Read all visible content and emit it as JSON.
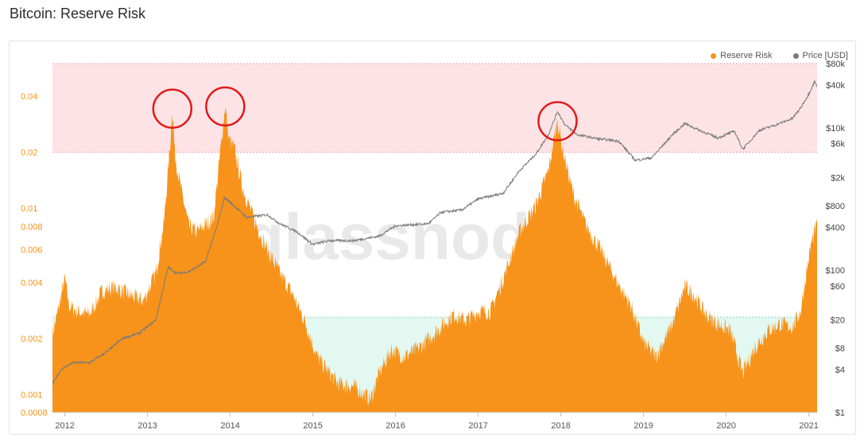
{
  "title": "Bitcoin: Reserve Risk",
  "watermark": "glassnode",
  "colors": {
    "reserve": "#f7931a",
    "price": "#7a7a7a",
    "redZone": "#fde3e5",
    "greenZone": "#e3f8f1",
    "leftAxis": "#f7931a"
  },
  "legend": {
    "reserve": "Reserve Risk",
    "price": "Price [USD]"
  },
  "chart_data": {
    "type": "area",
    "title": "Bitcoin: Reserve Risk",
    "x_ticks": [
      "2012",
      "2013",
      "2014",
      "2015",
      "2016",
      "2017",
      "2018",
      "2019",
      "2020",
      "2021"
    ],
    "x_range": [
      2011.85,
      2021.1
    ],
    "y_left": {
      "scale": "log",
      "range": [
        0.0008,
        0.06
      ],
      "ticks": [
        "0.04",
        "0.02",
        "0.01",
        "0.008",
        "0.006",
        "0.004",
        "0.002",
        "0.001",
        "0.0008"
      ]
    },
    "y_right": {
      "scale": "log",
      "range": [
        1,
        80000
      ],
      "ticks": [
        "$80k",
        "$40k",
        "$10k",
        "$6k",
        "$2k",
        "$800",
        "$400",
        "$100",
        "$60",
        "$20",
        "$8",
        "$4",
        "$1"
      ]
    },
    "zones": {
      "red": [
        0.02,
        0.06
      ],
      "green": [
        0.0008,
        0.0026
      ]
    },
    "series": [
      {
        "name": "Reserve Risk",
        "axis": "left",
        "points": [
          [
            2011.85,
            0.0021
          ],
          [
            2011.9,
            0.0026
          ],
          [
            2012.0,
            0.0042
          ],
          [
            2012.05,
            0.003
          ],
          [
            2012.15,
            0.0028
          ],
          [
            2012.3,
            0.0027
          ],
          [
            2012.45,
            0.0036
          ],
          [
            2012.6,
            0.0038
          ],
          [
            2012.8,
            0.0034
          ],
          [
            2012.95,
            0.0032
          ],
          [
            2013.1,
            0.0045
          ],
          [
            2013.2,
            0.0085
          ],
          [
            2013.28,
            0.024
          ],
          [
            2013.3,
            0.035
          ],
          [
            2013.33,
            0.02
          ],
          [
            2013.4,
            0.013
          ],
          [
            2013.5,
            0.008
          ],
          [
            2013.6,
            0.0075
          ],
          [
            2013.7,
            0.0082
          ],
          [
            2013.8,
            0.009
          ],
          [
            2013.88,
            0.02
          ],
          [
            2013.94,
            0.036
          ],
          [
            2013.98,
            0.024
          ],
          [
            2014.05,
            0.021
          ],
          [
            2014.15,
            0.013
          ],
          [
            2014.3,
            0.0085
          ],
          [
            2014.45,
            0.006
          ],
          [
            2014.6,
            0.0045
          ],
          [
            2014.75,
            0.0035
          ],
          [
            2014.9,
            0.0025
          ],
          [
            2015.05,
            0.0016
          ],
          [
            2015.3,
            0.00115
          ],
          [
            2015.5,
            0.0011
          ],
          [
            2015.7,
            0.00095
          ],
          [
            2015.8,
            0.0013
          ],
          [
            2015.95,
            0.00175
          ],
          [
            2016.1,
            0.0016
          ],
          [
            2016.3,
            0.0018
          ],
          [
            2016.5,
            0.0022
          ],
          [
            2016.7,
            0.0027
          ],
          [
            2016.85,
            0.0025
          ],
          [
            2017.0,
            0.0028
          ],
          [
            2017.15,
            0.0028
          ],
          [
            2017.3,
            0.0042
          ],
          [
            2017.5,
            0.0075
          ],
          [
            2017.7,
            0.0105
          ],
          [
            2017.85,
            0.016
          ],
          [
            2017.96,
            0.03
          ],
          [
            2018.02,
            0.021
          ],
          [
            2018.15,
            0.012
          ],
          [
            2018.3,
            0.0082
          ],
          [
            2018.5,
            0.0058
          ],
          [
            2018.7,
            0.0039
          ],
          [
            2018.85,
            0.003
          ],
          [
            2019.0,
            0.0019
          ],
          [
            2019.15,
            0.0016
          ],
          [
            2019.35,
            0.0024
          ],
          [
            2019.5,
            0.0038
          ],
          [
            2019.6,
            0.0035
          ],
          [
            2019.75,
            0.0027
          ],
          [
            2019.9,
            0.0024
          ],
          [
            2020.05,
            0.0022
          ],
          [
            2020.2,
            0.0013
          ],
          [
            2020.35,
            0.0018
          ],
          [
            2020.5,
            0.0022
          ],
          [
            2020.65,
            0.0024
          ],
          [
            2020.8,
            0.0023
          ],
          [
            2020.9,
            0.0028
          ],
          [
            2020.97,
            0.0045
          ],
          [
            2021.03,
            0.0065
          ],
          [
            2021.1,
            0.0083
          ]
        ]
      },
      {
        "name": "Price [USD]",
        "axis": "right",
        "points": [
          [
            2011.85,
            2.5
          ],
          [
            2011.95,
            4
          ],
          [
            2012.1,
            5
          ],
          [
            2012.3,
            5
          ],
          [
            2012.5,
            7
          ],
          [
            2012.7,
            11
          ],
          [
            2012.9,
            13
          ],
          [
            2013.1,
            20
          ],
          [
            2013.25,
            110
          ],
          [
            2013.35,
            90
          ],
          [
            2013.5,
            95
          ],
          [
            2013.7,
            130
          ],
          [
            2013.85,
            450
          ],
          [
            2013.93,
            1050
          ],
          [
            2014.05,
            800
          ],
          [
            2014.2,
            550
          ],
          [
            2014.45,
            600
          ],
          [
            2014.6,
            450
          ],
          [
            2014.8,
            350
          ],
          [
            2015.0,
            230
          ],
          [
            2015.2,
            260
          ],
          [
            2015.5,
            260
          ],
          [
            2015.8,
            300
          ],
          [
            2016.0,
            420
          ],
          [
            2016.4,
            450
          ],
          [
            2016.55,
            650
          ],
          [
            2016.8,
            700
          ],
          [
            2017.0,
            1000
          ],
          [
            2017.3,
            1200
          ],
          [
            2017.5,
            2500
          ],
          [
            2017.7,
            4300
          ],
          [
            2017.85,
            8000
          ],
          [
            2017.96,
            17000
          ],
          [
            2018.05,
            11000
          ],
          [
            2018.2,
            8000
          ],
          [
            2018.45,
            7000
          ],
          [
            2018.7,
            6500
          ],
          [
            2018.9,
            3500
          ],
          [
            2019.1,
            3800
          ],
          [
            2019.35,
            8000
          ],
          [
            2019.5,
            11500
          ],
          [
            2019.7,
            9000
          ],
          [
            2019.9,
            7200
          ],
          [
            2020.1,
            9000
          ],
          [
            2020.2,
            5000
          ],
          [
            2020.4,
            9200
          ],
          [
            2020.6,
            11000
          ],
          [
            2020.8,
            13500
          ],
          [
            2020.9,
            19000
          ],
          [
            2021.0,
            30000
          ],
          [
            2021.07,
            45000
          ],
          [
            2021.1,
            38000
          ]
        ]
      }
    ],
    "annotations": [
      {
        "type": "circle",
        "x": 2013.3
      },
      {
        "type": "circle",
        "x": 2013.94
      },
      {
        "type": "circle",
        "x": 2017.96
      }
    ]
  }
}
